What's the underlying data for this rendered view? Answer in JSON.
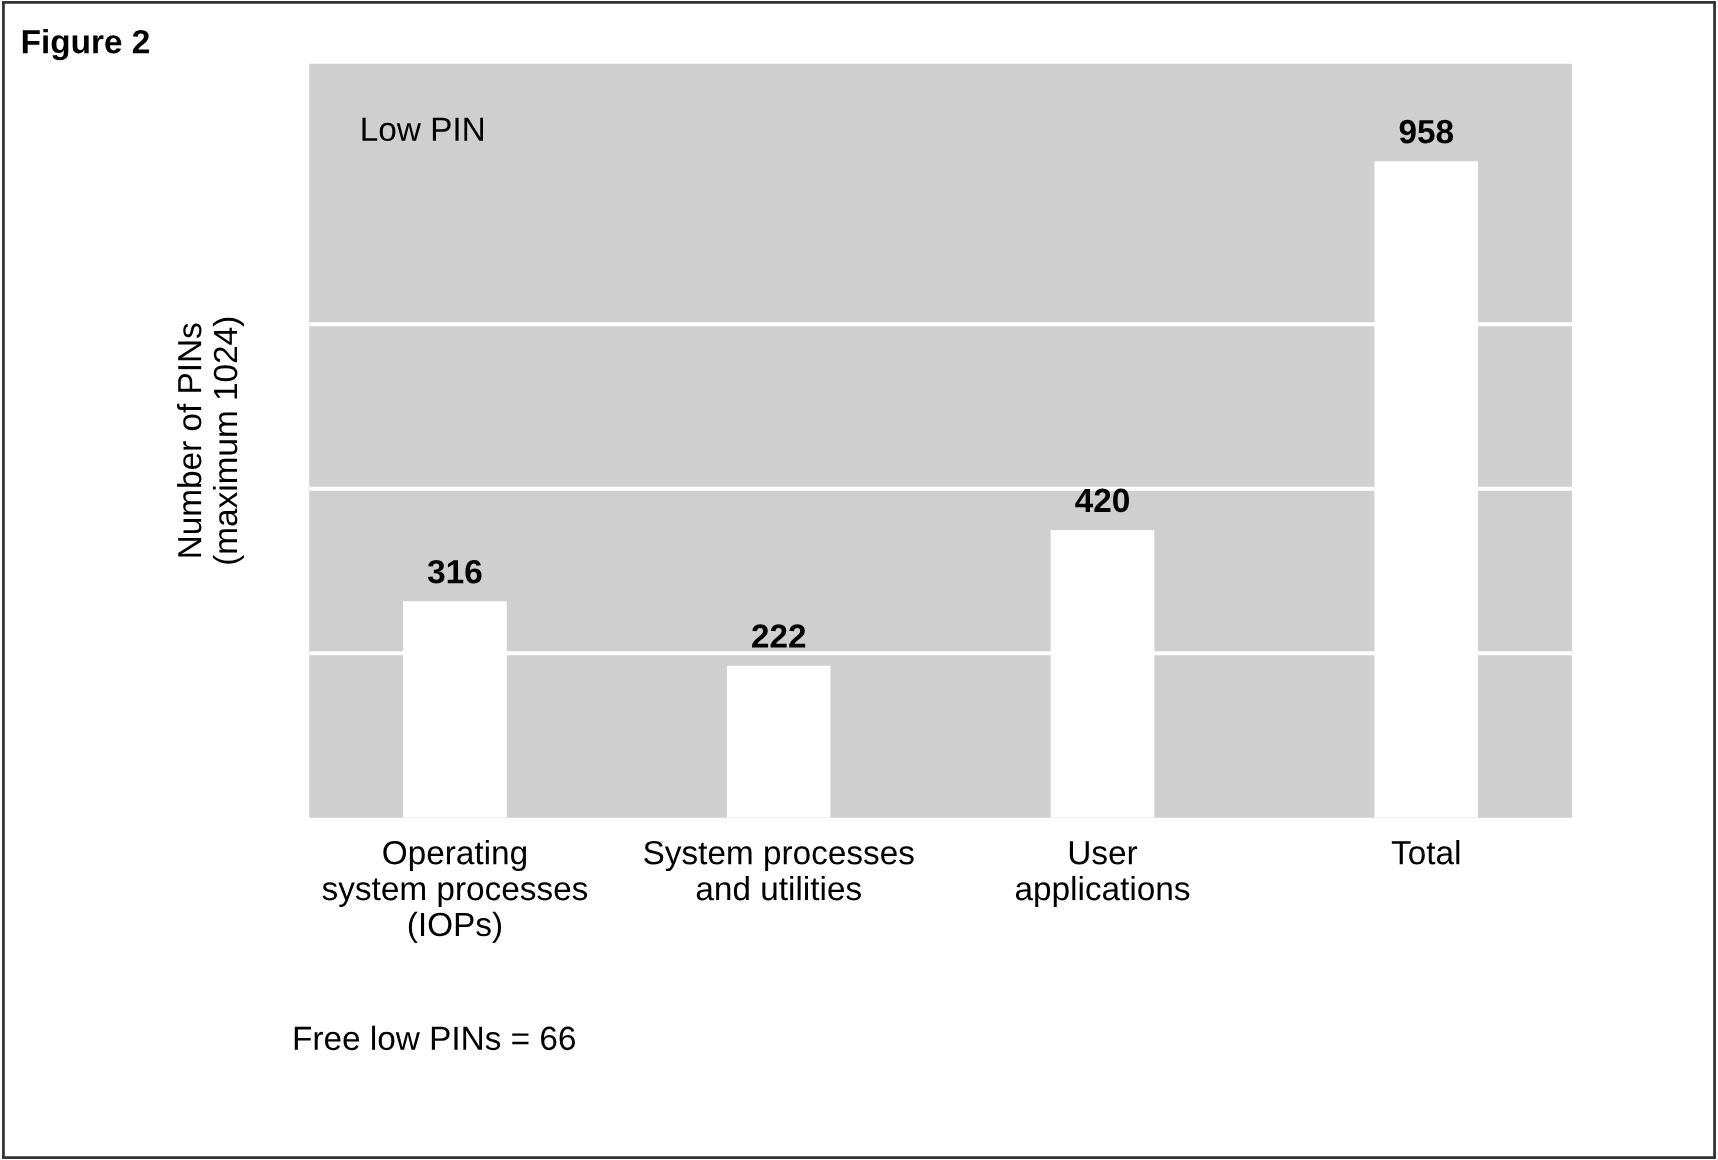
{
  "chart_data": {
    "type": "bar",
    "title": "Figure 2",
    "ylabel": "Number of PINs\n(maximum 1024)",
    "categories": [
      "Operating\nsystem processes\n(IOPs)",
      "System processes\nand utilities",
      "User\napplications",
      "Total"
    ],
    "values": [
      316,
      222,
      420,
      958
    ],
    "color": "#ffffff",
    "data_labels": true,
    "ylim": [
      0,
      1100
    ],
    "yticks": [
      {
        "value": 240,
        "label": null
      },
      {
        "value": 480,
        "label": null
      },
      {
        "value": 720,
        "label": null
      }
    ],
    "grid": "y",
    "annotations": [
      "Low PIN",
      "Free low PINs = 66"
    ]
  }
}
